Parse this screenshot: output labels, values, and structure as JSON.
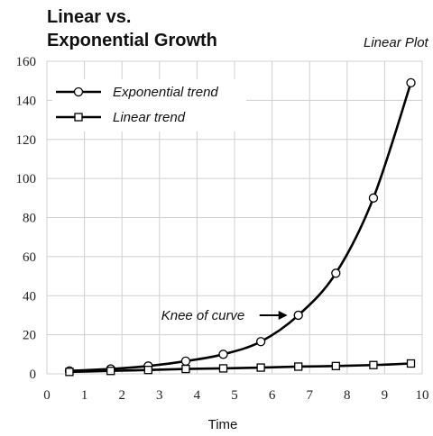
{
  "chart_data": {
    "type": "line",
    "title_lines": [
      "Linear vs.",
      "Exponential Growth"
    ],
    "subtitle": "Linear Plot",
    "xlabel": "Time",
    "ylabel": "",
    "xlim": [
      0,
      10
    ],
    "ylim": [
      0,
      160
    ],
    "x_ticks": [
      "0",
      "1",
      "2",
      "3",
      "4",
      "5",
      "6",
      "7",
      "8",
      "9",
      "10"
    ],
    "y_ticks": [
      "0",
      "20",
      "40",
      "60",
      "80",
      "100",
      "120",
      "140",
      "160"
    ],
    "grid": true,
    "legend_position": "top-left",
    "series": [
      {
        "name": "Exponential trend",
        "marker": "circle",
        "color": "#000000",
        "x": [
          0.6,
          1.7,
          2.7,
          3.7,
          4.7,
          5.7,
          6.7,
          7.7,
          8.7,
          9.7
        ],
        "y": [
          1.5,
          2.5,
          4.0,
          6.5,
          10.0,
          16.5,
          30.0,
          51.5,
          90.0,
          149.0
        ]
      },
      {
        "name": "Linear trend",
        "marker": "square",
        "color": "#000000",
        "x": [
          0.6,
          1.7,
          2.7,
          3.7,
          4.7,
          5.7,
          6.7,
          7.7,
          8.7,
          9.7
        ],
        "y": [
          1.0,
          1.5,
          2.0,
          2.5,
          2.8,
          3.2,
          3.7,
          4.0,
          4.5,
          5.3
        ]
      }
    ],
    "annotation": {
      "text": "Knee of curve",
      "x": 6.7,
      "y": 30.0
    }
  }
}
